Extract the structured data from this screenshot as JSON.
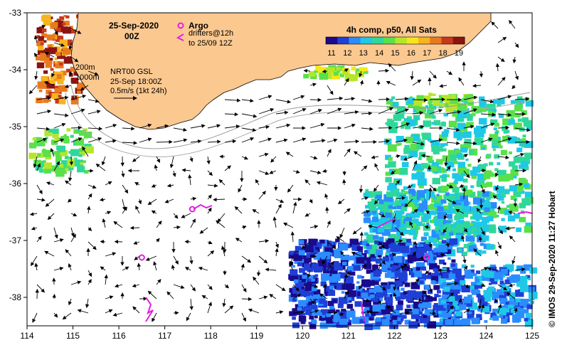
{
  "map": {
    "date_title": "25-Sep-2020",
    "time_title": "00Z",
    "isobaths": [
      "200m",
      "1000m"
    ],
    "product_line": "NRT00 GSL",
    "product_time": "25-Sep 18:00Z",
    "scale_label": "0.5m/s (1kt 24h)",
    "legend": {
      "argo_label": "Argo",
      "drifters_line1": "drifters@12h",
      "drifters_line2": "to 25/09 12Z"
    },
    "colorbar": {
      "title": "4h comp, p50, All Sats",
      "ticks": [
        "11",
        "12",
        "13",
        "14",
        "15",
        "16",
        "17",
        "18",
        "19"
      ],
      "colors": [
        "#1a0a8c",
        "#1f3fd6",
        "#2a8cff",
        "#1fc8e6",
        "#2fd89a",
        "#5ae04a",
        "#b6e62a",
        "#f4e81a",
        "#f6b41e",
        "#e87a1e",
        "#c8381c",
        "#8c1410"
      ]
    },
    "credit": "© IMOS 29-Sep-2020 11:27 Hobart",
    "x_axis": {
      "ticks": [
        "114",
        "115",
        "116",
        "117",
        "118",
        "119",
        "120",
        "121",
        "122",
        "123",
        "124",
        "125"
      ],
      "range": [
        114,
        125
      ]
    },
    "y_axis": {
      "ticks": [
        "-33",
        "-34",
        "-35",
        "-36",
        "-37",
        "-38"
      ],
      "range": [
        -38.5,
        -33
      ]
    },
    "colors": {
      "land": "#fbc890",
      "argo": "#e020e0"
    }
  }
}
